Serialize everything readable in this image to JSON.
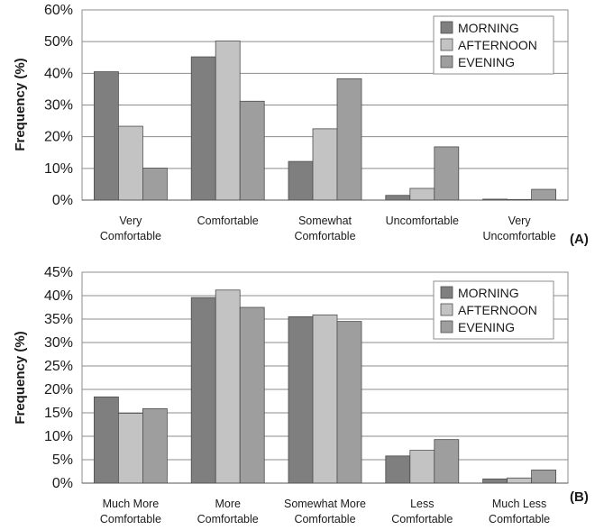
{
  "chart_data": [
    {
      "type": "bar",
      "panel_label": "(A)",
      "ylabel": "Frequency (%)",
      "ylim": [
        0,
        60
      ],
      "yticks": [
        "0%",
        "10%",
        "20%",
        "30%",
        "40%",
        "50%",
        "60%"
      ],
      "categories": [
        [
          "Very",
          "Comfortable"
        ],
        [
          "Comfortable"
        ],
        [
          "Somewhat",
          "Comfortable"
        ],
        [
          "Uncomfortable"
        ],
        [
          "Very",
          "Uncomfortable"
        ]
      ],
      "legend_position": "top-right",
      "grid": true,
      "series": [
        {
          "name": "MORNING",
          "values": [
            40.5,
            45.2,
            12.2,
            1.5,
            0.3
          ]
        },
        {
          "name": "AFTERNOON",
          "values": [
            23.3,
            50.2,
            22.5,
            3.7,
            0.2
          ]
        },
        {
          "name": "EVENING",
          "values": [
            10.1,
            31.2,
            38.3,
            16.8,
            3.4
          ]
        }
      ]
    },
    {
      "type": "bar",
      "panel_label": "(B)",
      "ylabel": "Frequency (%)",
      "ylim": [
        0,
        45
      ],
      "yticks": [
        "0%",
        "5%",
        "10%",
        "15%",
        "20%",
        "25%",
        "30%",
        "35%",
        "40%",
        "45%"
      ],
      "categories": [
        [
          "Much More",
          "Comfortable"
        ],
        [
          "More",
          "Comfortable"
        ],
        [
          "Somewhat More",
          "Comfortable"
        ],
        [
          "Less",
          "Comfortable"
        ],
        [
          "Much Less",
          "Comfortable"
        ]
      ],
      "legend_position": "top-right",
      "grid": true,
      "series": [
        {
          "name": "MORNING",
          "values": [
            18.4,
            39.6,
            35.5,
            5.8,
            0.9
          ]
        },
        {
          "name": "AFTERNOON",
          "values": [
            14.9,
            41.2,
            35.9,
            7.0,
            1.1
          ]
        },
        {
          "name": "EVENING",
          "values": [
            15.9,
            37.5,
            34.5,
            9.3,
            2.8
          ]
        }
      ]
    }
  ],
  "colors": {
    "MORNING": "#7f7f7f",
    "AFTERNOON": "#c3c3c3",
    "EVENING": "#9e9e9e",
    "grid": "#8c8c8c",
    "bar_stroke": "#4d4d4d"
  }
}
